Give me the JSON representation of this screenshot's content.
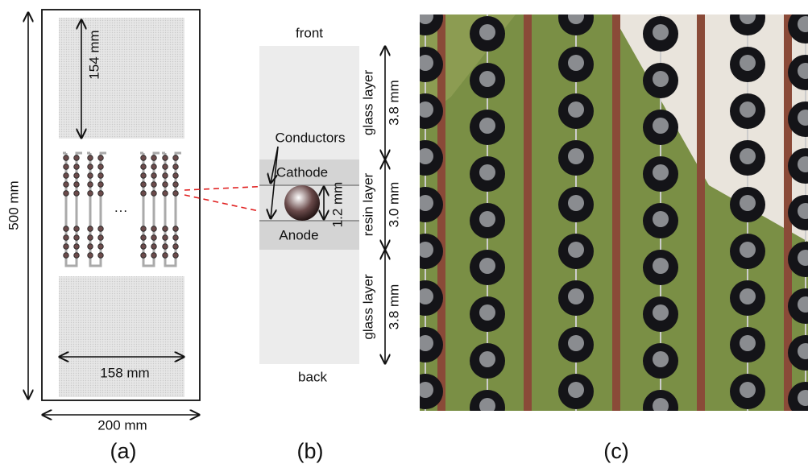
{
  "panel_a": {
    "height": "500 mm",
    "gap": "154 mm",
    "inner_width": "158 mm",
    "width": "200 mm",
    "ellipsis": "···",
    "label": "(a)"
  },
  "panel_b": {
    "front": "front",
    "back": "back",
    "conductors": "Conductors",
    "cathode": "Cathode",
    "anode": "Anode",
    "cell": "1.2 mm",
    "layers": [
      {
        "name": "glass layer",
        "thickness": "3.8 mm"
      },
      {
        "name": "resin layer",
        "thickness": "3.0 mm"
      },
      {
        "name": "glass layer",
        "thickness": "3.8 mm"
      }
    ],
    "label": "(b)"
  },
  "panel_c": {
    "label": "(c)"
  }
}
